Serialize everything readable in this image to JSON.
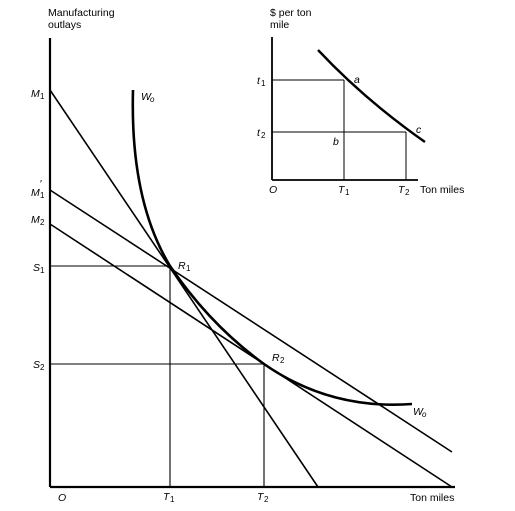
{
  "main": {
    "y_axis_label_line1": "Manufacturing",
    "y_axis_label_line2": "outlays",
    "x_axis_label": "Ton miles",
    "origin": "O",
    "y_ticks": {
      "m1": "M",
      "m1_sub": "1",
      "m1p": "M",
      "m1p_sub": "1",
      "m2": "M",
      "m2_sub": "2",
      "s1": "S",
      "s1_sub": "1",
      "s2": "S",
      "s2_sub": "2"
    },
    "x_ticks": {
      "t1": "T",
      "t1_sub": "1",
      "t2": "T",
      "t2_sub": "2"
    },
    "points": {
      "r1": "R",
      "r1_sub": "1",
      "r2": "R",
      "r2_sub": "2"
    },
    "curve_label_top": "W",
    "curve_label_top_sub": "o",
    "curve_label_bottom": "W",
    "curve_label_bottom_sub": "o"
  },
  "inset": {
    "y_axis_label_line1": "$ per ton",
    "y_axis_label_line2": "mile",
    "x_axis_label": "Ton miles",
    "origin": "O",
    "y_ticks": {
      "t1": "t",
      "t1_sub": "1",
      "t2": "t",
      "t2_sub": "2"
    },
    "x_ticks": {
      "t1": "T",
      "t1_sub": "1",
      "t2": "T",
      "t2_sub": "2"
    },
    "points": {
      "a": "a",
      "b": "b",
      "c": "c"
    }
  }
}
